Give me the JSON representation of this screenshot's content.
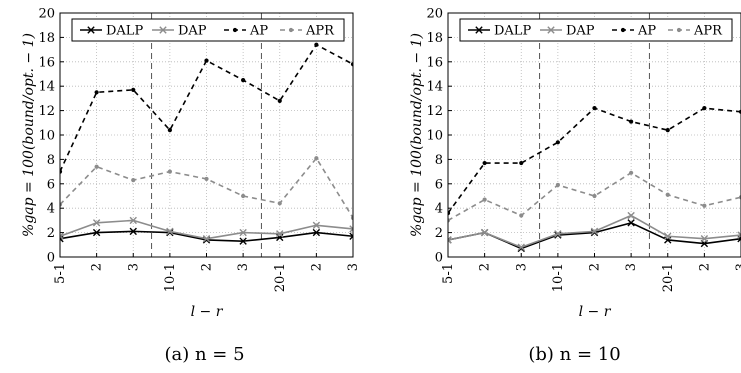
{
  "chart_data": [
    {
      "type": "line",
      "caption": "(a) n = 5",
      "xlabel": "l − r",
      "ylabel": "%gap = 100(bound/opt. − 1)",
      "ylim": [
        0,
        20
      ],
      "yticks": [
        0,
        2,
        4,
        6,
        8,
        10,
        12,
        14,
        16,
        18,
        20
      ],
      "categories": [
        "5-1",
        "2",
        "3",
        "10-1",
        "2",
        "3",
        "20-1",
        "2",
        "3"
      ],
      "group_separators_after": [
        3,
        6
      ],
      "grid": true,
      "legend_placement": "top",
      "series": [
        {
          "name": "DALP",
          "values": [
            1.5,
            2.0,
            2.1,
            2.0,
            1.4,
            1.3,
            1.6,
            2.0,
            1.7
          ]
        },
        {
          "name": "DAP",
          "values": [
            1.7,
            2.8,
            3.0,
            2.1,
            1.5,
            2.0,
            1.9,
            2.6,
            2.3
          ]
        },
        {
          "name": "AP",
          "values": [
            7.0,
            13.5,
            13.7,
            10.4,
            16.1,
            14.5,
            12.8,
            17.4,
            15.8
          ]
        },
        {
          "name": "APR",
          "values": [
            4.3,
            7.4,
            6.3,
            7.0,
            6.4,
            5.0,
            4.4,
            8.1,
            3.2
          ]
        }
      ]
    },
    {
      "type": "line",
      "caption": "(b) n = 10",
      "xlabel": "l − r",
      "ylabel": "%gap = 100(bound/opt. − 1)",
      "ylim": [
        0,
        20
      ],
      "yticks": [
        0,
        2,
        4,
        6,
        8,
        10,
        12,
        14,
        16,
        18,
        20
      ],
      "categories": [
        "5-1",
        "2",
        "3",
        "10-1",
        "2",
        "3",
        "20-1",
        "2",
        "3"
      ],
      "group_separators_after": [
        3,
        6
      ],
      "grid": true,
      "legend_placement": "top",
      "series": [
        {
          "name": "DALP",
          "values": [
            1.4,
            2.0,
            0.7,
            1.8,
            2.0,
            2.8,
            1.4,
            1.1,
            1.5
          ]
        },
        {
          "name": "DAP",
          "values": [
            1.4,
            2.0,
            0.8,
            1.9,
            2.1,
            3.4,
            1.7,
            1.5,
            1.8
          ]
        },
        {
          "name": "AP",
          "values": [
            3.6,
            7.7,
            7.7,
            9.4,
            12.2,
            11.1,
            10.4,
            12.2,
            11.9
          ]
        },
        {
          "name": "APR",
          "values": [
            3.0,
            4.7,
            3.4,
            5.9,
            5.0,
            6.9,
            5.1,
            4.2,
            4.9
          ]
        }
      ]
    }
  ],
  "styles": {
    "DALP": {
      "color": "#000000",
      "dash": "",
      "marker": "x"
    },
    "DAP": {
      "color": "#8c8c8c",
      "dash": "",
      "marker": "x"
    },
    "AP": {
      "color": "#000000",
      "dash": "5,4",
      "marker": "dot"
    },
    "APR": {
      "color": "#8c8c8c",
      "dash": "5,4",
      "marker": "dot"
    }
  }
}
